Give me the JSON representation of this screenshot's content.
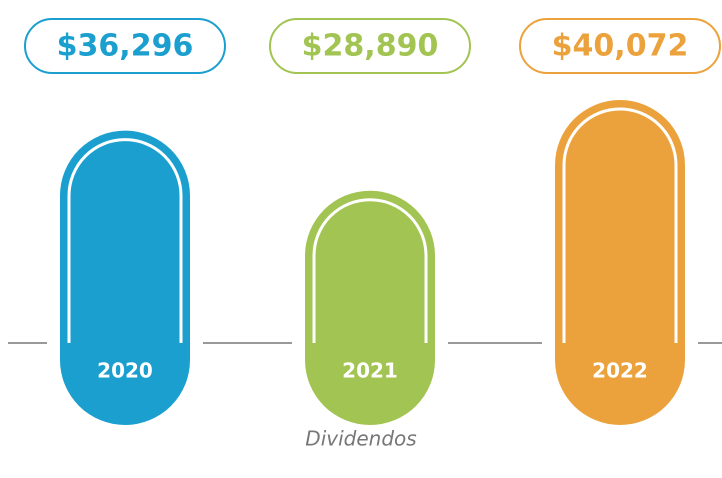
{
  "chart_data": {
    "type": "bar",
    "categories": [
      "2020",
      "2021",
      "2022"
    ],
    "values": [
      36296,
      28890,
      40072
    ],
    "value_labels": [
      "$36,296",
      "$28,890",
      "$40,072"
    ],
    "colors": [
      "#1a9fcf",
      "#a2c452",
      "#eca23c"
    ],
    "caption": "Dividendos"
  }
}
